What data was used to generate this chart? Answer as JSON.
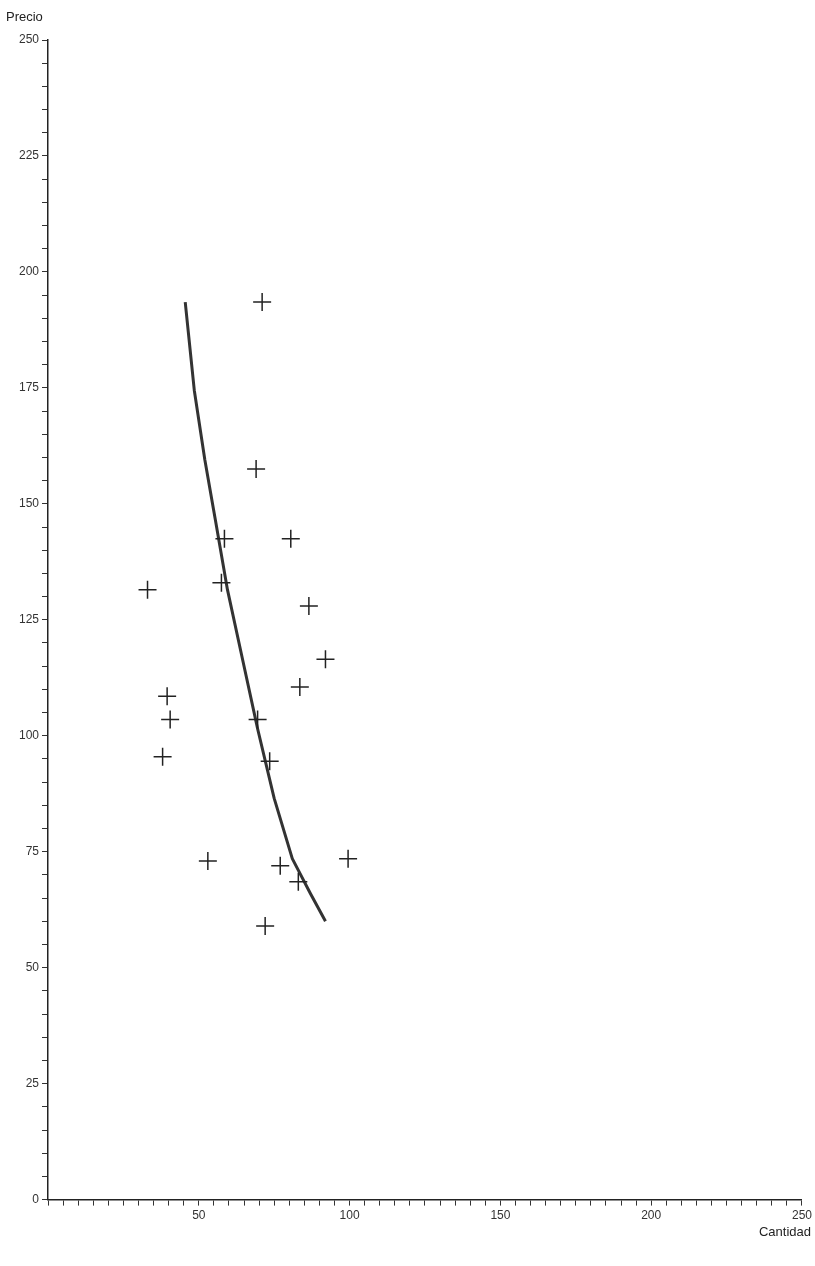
{
  "chart_data": {
    "type": "scatter",
    "xlabel": "Cantidad",
    "ylabel": "Precio",
    "marker": "cross",
    "grid": false,
    "legend": false,
    "xlim": [
      0,
      250
    ],
    "ylim": [
      0,
      250
    ],
    "xticks": [
      {
        "value": 0,
        "label": null
      },
      {
        "value": 5,
        "label": null
      },
      {
        "value": 10,
        "label": null
      },
      {
        "value": 15,
        "label": null
      },
      {
        "value": 20,
        "label": null
      },
      {
        "value": 25,
        "label": null
      },
      {
        "value": 30,
        "label": null
      },
      {
        "value": 35,
        "label": null
      },
      {
        "value": 40,
        "label": null
      },
      {
        "value": 45,
        "label": null
      },
      50,
      {
        "value": 55,
        "label": null
      },
      {
        "value": 60,
        "label": null
      },
      {
        "value": 65,
        "label": null
      },
      {
        "value": 70,
        "label": null
      },
      {
        "value": 75,
        "label": null
      },
      {
        "value": 80,
        "label": null
      },
      {
        "value": 85,
        "label": null
      },
      {
        "value": 90,
        "label": null
      },
      {
        "value": 95,
        "label": null
      },
      100,
      {
        "value": 105,
        "label": null
      },
      {
        "value": 110,
        "label": null
      },
      {
        "value": 115,
        "label": null
      },
      {
        "value": 120,
        "label": null
      },
      {
        "value": 125,
        "label": null
      },
      {
        "value": 130,
        "label": null
      },
      {
        "value": 135,
        "label": null
      },
      {
        "value": 140,
        "label": null
      },
      {
        "value": 145,
        "label": null
      },
      150,
      {
        "value": 155,
        "label": null
      },
      {
        "value": 160,
        "label": null
      },
      {
        "value": 165,
        "label": null
      },
      {
        "value": 170,
        "label": null
      },
      {
        "value": 175,
        "label": null
      },
      {
        "value": 180,
        "label": null
      },
      {
        "value": 185,
        "label": null
      },
      {
        "value": 190,
        "label": null
      },
      {
        "value": 195,
        "label": null
      },
      200,
      {
        "value": 205,
        "label": null
      },
      {
        "value": 210,
        "label": null
      },
      {
        "value": 215,
        "label": null
      },
      {
        "value": 220,
        "label": null
      },
      {
        "value": 225,
        "label": null
      },
      {
        "value": 230,
        "label": null
      },
      {
        "value": 235,
        "label": null
      },
      {
        "value": 240,
        "label": null
      },
      {
        "value": 245,
        "label": null
      },
      250
    ],
    "yticks": [
      0,
      {
        "value": 5,
        "label": null
      },
      {
        "value": 10,
        "label": null
      },
      {
        "value": 15,
        "label": null
      },
      {
        "value": 20,
        "label": null
      },
      25,
      {
        "value": 30,
        "label": null
      },
      {
        "value": 35,
        "label": null
      },
      {
        "value": 40,
        "label": null
      },
      {
        "value": 45,
        "label": null
      },
      50,
      {
        "value": 55,
        "label": null
      },
      {
        "value": 60,
        "label": null
      },
      {
        "value": 65,
        "label": null
      },
      {
        "value": 70,
        "label": null
      },
      75,
      {
        "value": 80,
        "label": null
      },
      {
        "value": 85,
        "label": null
      },
      {
        "value": 90,
        "label": null
      },
      {
        "value": 95,
        "label": null
      },
      100,
      {
        "value": 105,
        "label": null
      },
      {
        "value": 110,
        "label": null
      },
      {
        "value": 115,
        "label": null
      },
      {
        "value": 120,
        "label": null
      },
      125,
      {
        "value": 130,
        "label": null
      },
      {
        "value": 135,
        "label": null
      },
      {
        "value": 140,
        "label": null
      },
      {
        "value": 145,
        "label": null
      },
      150,
      {
        "value": 155,
        "label": null
      },
      {
        "value": 160,
        "label": null
      },
      {
        "value": 165,
        "label": null
      },
      {
        "value": 170,
        "label": null
      },
      175,
      {
        "value": 180,
        "label": null
      },
      {
        "value": 185,
        "label": null
      },
      {
        "value": 190,
        "label": null
      },
      {
        "value": 195,
        "label": null
      },
      200,
      {
        "value": 205,
        "label": null
      },
      {
        "value": 210,
        "label": null
      },
      {
        "value": 215,
        "label": null
      },
      {
        "value": 220,
        "label": null
      },
      225,
      {
        "value": 230,
        "label": null
      },
      {
        "value": 235,
        "label": null
      },
      {
        "value": 240,
        "label": null
      },
      {
        "value": 245,
        "label": null
      },
      250
    ],
    "series": [
      {
        "color": "#222222",
        "x": [
          33,
          71,
          69,
          58.5,
          80.5,
          57.5,
          86.5,
          92,
          83.5,
          39.5,
          40.5,
          38,
          69.5,
          73.5,
          53,
          77,
          99.5,
          83,
          72
        ],
        "values": [
          131.5,
          193.5,
          157.5,
          142.5,
          142.5,
          133,
          128,
          116.5,
          110.5,
          108.5,
          103.5,
          95.5,
          103.5,
          94.5,
          73,
          72,
          73.5,
          68.5,
          59
        ]
      },
      {
        "type": "line",
        "marker": "none",
        "color": "#333333",
        "x": [
          45.5,
          48.5,
          52,
          55.5,
          59.5,
          64.5,
          69.5,
          75,
          81,
          87,
          92
        ],
        "values": [
          193.5,
          174.5,
          159.5,
          146.5,
          131.5,
          116.5,
          101.5,
          86.5,
          73.5,
          66,
          60
        ]
      }
    ]
  }
}
